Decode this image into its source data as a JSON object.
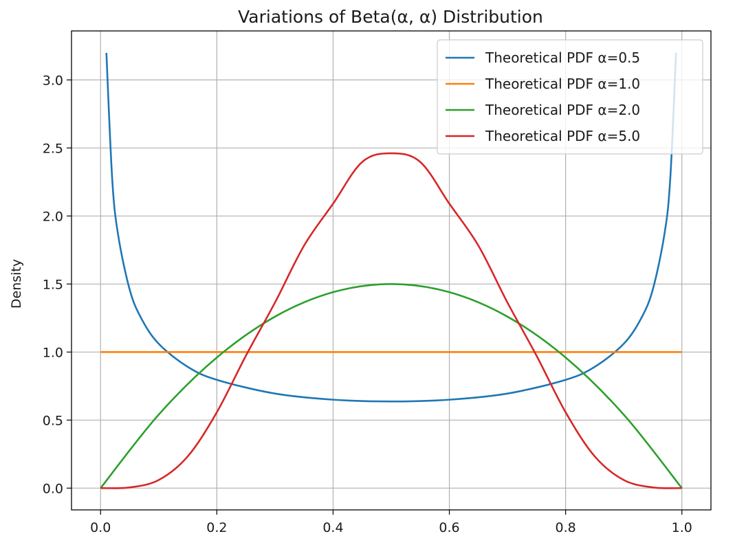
{
  "chart_data": {
    "type": "line",
    "title": "Variations of Beta(α, α) Distribution",
    "xlabel": "",
    "ylabel": "Density",
    "xlim": [
      -0.05,
      1.05
    ],
    "ylim": [
      -0.16,
      3.36
    ],
    "xticks": [
      0.0,
      0.2,
      0.4,
      0.6,
      0.8,
      1.0
    ],
    "xtick_labels": [
      "0.0",
      "0.2",
      "0.4",
      "0.6",
      "0.8",
      "1.0"
    ],
    "yticks": [
      0.0,
      0.5,
      1.0,
      1.5,
      2.0,
      2.5,
      3.0
    ],
    "ytick_labels": [
      "0.0",
      "0.5",
      "1.0",
      "1.5",
      "2.0",
      "2.5",
      "3.0"
    ],
    "grid": true,
    "legend_position": "top-right",
    "series": [
      {
        "name": "Theoretical PDF α=0.5",
        "color": "#1f77b4",
        "x": [
          0.01,
          0.02,
          0.03,
          0.05,
          0.07,
          0.1,
          0.15,
          0.2,
          0.3,
          0.4,
          0.5,
          0.6,
          0.7,
          0.8,
          0.85,
          0.9,
          0.93,
          0.95,
          0.97,
          0.98,
          0.99
        ],
        "y": [
          3.199,
          2.273,
          1.866,
          1.46,
          1.248,
          1.061,
          0.891,
          0.796,
          0.695,
          0.65,
          0.637,
          0.65,
          0.695,
          0.796,
          0.891,
          1.061,
          1.248,
          1.46,
          1.866,
          2.273,
          3.199
        ]
      },
      {
        "name": "Theoretical PDF α=1.0",
        "color": "#ff7f0e",
        "x": [
          0.0,
          0.25,
          0.5,
          0.75,
          1.0
        ],
        "y": [
          1.0,
          1.0,
          1.0,
          1.0,
          1.0
        ]
      },
      {
        "name": "Theoretical PDF α=2.0",
        "color": "#2ca02c",
        "x": [
          0.0,
          0.1,
          0.2,
          0.3,
          0.4,
          0.5,
          0.6,
          0.7,
          0.8,
          0.9,
          1.0
        ],
        "y": [
          0.0,
          0.54,
          0.96,
          1.26,
          1.44,
          1.5,
          1.44,
          1.26,
          0.96,
          0.54,
          0.0
        ]
      },
      {
        "name": "Theoretical PDF α=5.0",
        "color": "#d62728",
        "x": [
          0.0,
          0.05,
          0.1,
          0.15,
          0.2,
          0.25,
          0.3,
          0.35,
          0.4,
          0.45,
          0.5,
          0.55,
          0.6,
          0.65,
          0.7,
          0.75,
          0.8,
          0.85,
          0.9,
          0.95,
          1.0
        ],
        "y": [
          0.0,
          0.0052,
          0.0595,
          0.2336,
          0.5574,
          0.9731,
          1.3635,
          1.7817,
          2.0903,
          2.3968,
          2.4609,
          2.3968,
          2.0903,
          1.7817,
          1.3635,
          0.9731,
          0.5574,
          0.2336,
          0.0595,
          0.0052,
          0.0
        ]
      }
    ]
  }
}
